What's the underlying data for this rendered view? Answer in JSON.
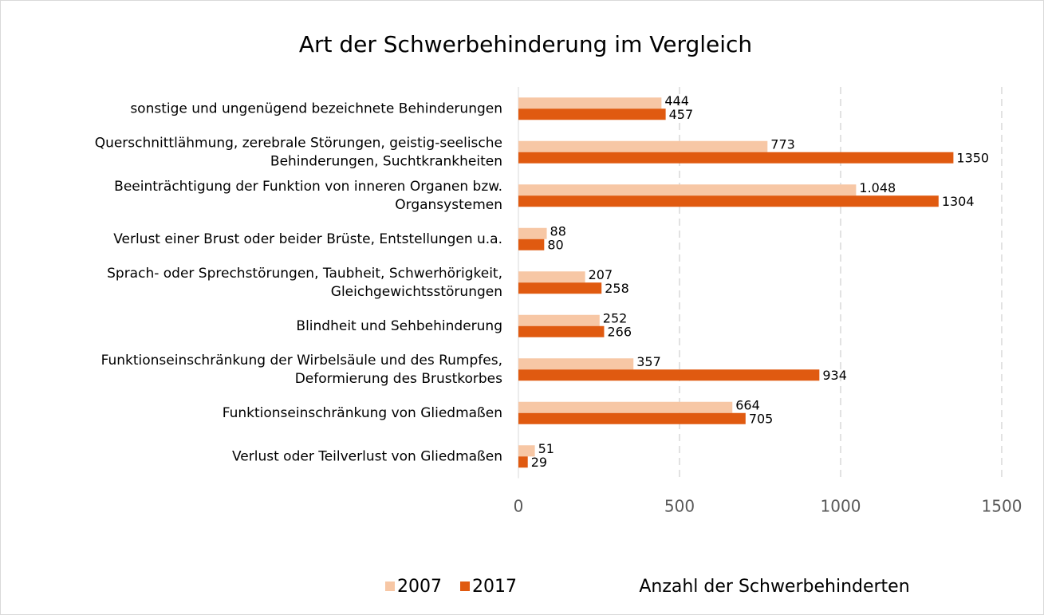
{
  "chart_data": {
    "type": "hbar",
    "title": "Art der Schwerbehinderung im Vergleich",
    "x_label": "Anzahl der Schwerbehinderten",
    "categories": [
      "sonstige und ungenügend bezeichnete Behinderungen",
      "Querschnittlähmung, zerebrale Störungen, geistig-seelische\nBehinderungen, Suchtkrankheiten",
      "Beeinträchtigung der Funktion von inneren Organen bzw.\nOrgansystemen",
      "Verlust einer Brust oder beider Brüste, Entstellungen u.a.",
      "Sprach- oder Sprechstörungen, Taubheit, Schwerhörigkeit,\nGleichgewichtsstörungen",
      "Blindheit und Sehbehinderung",
      "Funktionseinschränkung der Wirbelsäule und des Rumpfes,\nDeformierung des Brustkorbes",
      "Funktionseinschränkung von Gliedmaßen",
      "Verlust oder Teilverlust von Gliedmaßen"
    ],
    "series": [
      {
        "name": "2007",
        "color": "#f7c7a5",
        "values": [
          444,
          773,
          1048,
          88,
          207,
          252,
          357,
          664,
          51
        ],
        "value_labels": [
          "444",
          "773",
          "1.048",
          "88",
          "207",
          "252",
          "357",
          "664",
          "51"
        ]
      },
      {
        "name": "2017",
        "color": "#e05a10",
        "values": [
          457,
          1350,
          1304,
          80,
          258,
          266,
          934,
          705,
          29
        ]
      }
    ],
    "xlim": [
      0,
      1500
    ],
    "xticks": [
      0,
      500,
      1000,
      1500
    ],
    "grid": true,
    "legend": "bottom"
  }
}
